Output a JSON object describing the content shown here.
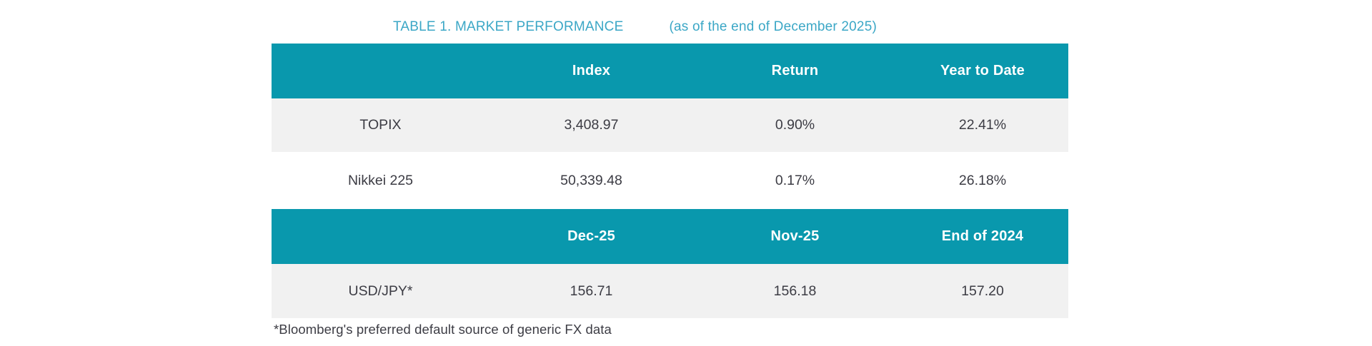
{
  "title": {
    "main": "TABLE 1. MARKET PERFORMANCE",
    "as_of": "(as of the end of December 2025)"
  },
  "index_table": {
    "headers": [
      "",
      "Index",
      "Return",
      "Year to Date"
    ],
    "rows": [
      {
        "label": "TOPIX",
        "index": "3,408.97",
        "return": "0.90%",
        "ytd": "22.41%"
      },
      {
        "label": "Nikkei 225",
        "index": "50,339.48",
        "return": "0.17%",
        "ytd": "26.18%"
      }
    ]
  },
  "fx_table": {
    "headers": [
      "",
      "Dec-25",
      "Nov-25",
      "End of 2024"
    ],
    "rows": [
      {
        "label": "USD/JPY*",
        "dec25": "156.71",
        "nov25": "156.18",
        "end2024": "157.20"
      }
    ]
  },
  "footnote": "*Bloomberg's preferred default source of generic FX data",
  "colors": {
    "header_bg": "#0998ad",
    "alt_row_bg": "#f1f1f1",
    "title_text": "#3ba7c6",
    "header_text": "#ffffff",
    "body_text": "#3c3c44"
  }
}
